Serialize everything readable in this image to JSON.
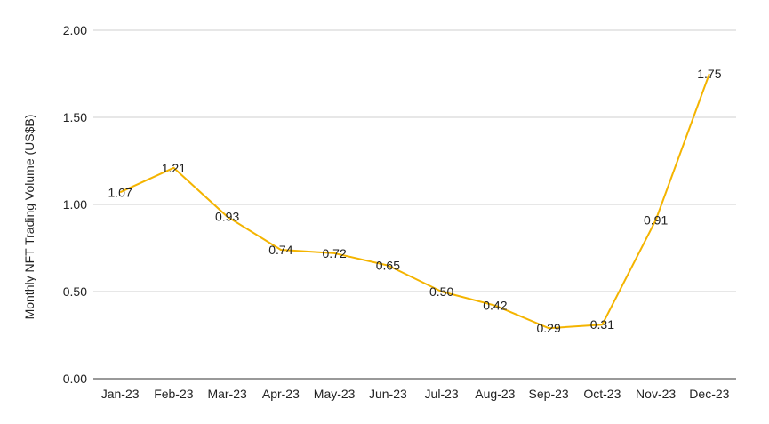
{
  "chart_data": {
    "type": "line",
    "title": "",
    "xlabel": "",
    "ylabel": "Monthly NFT Trading Volume (US$B)",
    "ylim": [
      0,
      2
    ],
    "y_ticks": [
      "0.00",
      "0.50",
      "1.00",
      "1.50",
      "2.00"
    ],
    "grid": true,
    "legend": "none",
    "categories": [
      "Jan-23",
      "Feb-23",
      "Mar-23",
      "Apr-23",
      "May-23",
      "Jun-23",
      "Jul-23",
      "Aug-23",
      "Sep-23",
      "Oct-23",
      "Nov-23",
      "Dec-23"
    ],
    "series": [
      {
        "values": [
          1.07,
          1.21,
          0.93,
          0.74,
          0.72,
          0.65,
          0.5,
          0.42,
          0.29,
          0.31,
          0.91,
          1.75
        ],
        "labels": [
          "1.07",
          "1.21",
          "0.93",
          "0.74",
          "0.72",
          "0.65",
          "0.50",
          "0.42",
          "0.29",
          "0.31",
          "0.91",
          "1.75"
        ],
        "color": "#f4b400"
      }
    ]
  }
}
